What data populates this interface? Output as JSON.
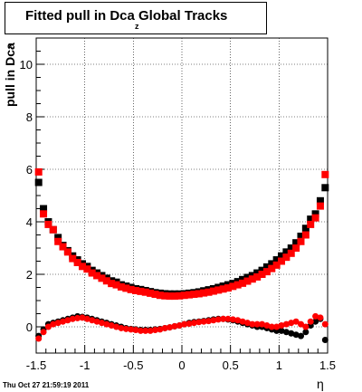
{
  "title": "Fitted pull in Dca",
  "title_suffix": "Global Tracks",
  "title_subscript": "z",
  "ylabel": "pull in Dca",
  "ylabel_subscript": "z",
  "xlabel": "η",
  "timestamp": "Thu Oct 27 21:59:19 2011",
  "chart_data": {
    "type": "scatter",
    "title": "Fitted pull in Dca Global Tracks",
    "xlabel": "η",
    "ylabel": "pull in Dca z",
    "xlim": [
      -1.5,
      1.5
    ],
    "ylim": [
      -1,
      11
    ],
    "xticks": [
      -1.5,
      -1,
      -0.5,
      0,
      0.5,
      1,
      1.5
    ],
    "xtick_labels": [
      "-1.5",
      "-1",
      "-0.5",
      "0",
      "0.5",
      "1",
      "1.5"
    ],
    "yticks": [
      0,
      2,
      4,
      6,
      8,
      10
    ],
    "ytick_labels": [
      "0",
      "2",
      "4",
      "6",
      "8",
      "10"
    ],
    "grid": true,
    "series": [
      {
        "color": "#000000",
        "marker": "square",
        "x": [
          -1.475,
          -1.425,
          -1.375,
          -1.325,
          -1.275,
          -1.225,
          -1.175,
          -1.125,
          -1.075,
          -1.025,
          -0.975,
          -0.925,
          -0.875,
          -0.825,
          -0.775,
          -0.725,
          -0.675,
          -0.625,
          -0.575,
          -0.525,
          -0.475,
          -0.425,
          -0.375,
          -0.325,
          -0.275,
          -0.225,
          -0.175,
          -0.125,
          -0.075,
          -0.025,
          0.025,
          0.075,
          0.125,
          0.175,
          0.225,
          0.275,
          0.325,
          0.375,
          0.425,
          0.475,
          0.525,
          0.575,
          0.625,
          0.675,
          0.725,
          0.775,
          0.825,
          0.875,
          0.925,
          0.975,
          1.025,
          1.075,
          1.125,
          1.175,
          1.225,
          1.275,
          1.325,
          1.375,
          1.425,
          1.475
        ],
        "values": [
          5.5,
          4.5,
          4.0,
          3.7,
          3.4,
          3.1,
          2.9,
          2.7,
          2.55,
          2.4,
          2.3,
          2.15,
          2.05,
          1.95,
          1.85,
          1.75,
          1.7,
          1.6,
          1.55,
          1.5,
          1.45,
          1.42,
          1.38,
          1.34,
          1.3,
          1.28,
          1.26,
          1.25,
          1.25,
          1.25,
          1.26,
          1.28,
          1.3,
          1.33,
          1.37,
          1.41,
          1.45,
          1.5,
          1.55,
          1.6,
          1.65,
          1.72,
          1.8,
          1.88,
          1.95,
          2.05,
          2.15,
          2.28,
          2.4,
          2.55,
          2.7,
          2.85,
          3.0,
          3.2,
          3.45,
          3.75,
          4.1,
          4.3,
          4.8,
          5.3
        ]
      },
      {
        "color": "#ff0000",
        "marker": "square",
        "x": [
          -1.475,
          -1.425,
          -1.375,
          -1.325,
          -1.275,
          -1.225,
          -1.175,
          -1.125,
          -1.075,
          -1.025,
          -0.975,
          -0.925,
          -0.875,
          -0.825,
          -0.775,
          -0.725,
          -0.675,
          -0.625,
          -0.575,
          -0.525,
          -0.475,
          -0.425,
          -0.375,
          -0.325,
          -0.275,
          -0.225,
          -0.175,
          -0.125,
          -0.075,
          -0.025,
          0.025,
          0.075,
          0.125,
          0.175,
          0.225,
          0.275,
          0.325,
          0.375,
          0.425,
          0.475,
          0.525,
          0.575,
          0.625,
          0.675,
          0.725,
          0.775,
          0.825,
          0.875,
          0.925,
          0.975,
          1.025,
          1.075,
          1.125,
          1.175,
          1.225,
          1.275,
          1.325,
          1.375,
          1.425,
          1.475
        ],
        "values": [
          5.9,
          4.3,
          3.9,
          3.7,
          3.25,
          3.05,
          2.85,
          2.6,
          2.45,
          2.3,
          2.2,
          2.05,
          1.95,
          1.85,
          1.75,
          1.65,
          1.6,
          1.52,
          1.47,
          1.42,
          1.38,
          1.35,
          1.32,
          1.28,
          1.24,
          1.2,
          1.18,
          1.17,
          1.17,
          1.18,
          1.2,
          1.22,
          1.24,
          1.26,
          1.29,
          1.32,
          1.36,
          1.4,
          1.44,
          1.48,
          1.54,
          1.6,
          1.66,
          1.74,
          1.82,
          1.9,
          2.0,
          2.1,
          2.22,
          2.35,
          2.5,
          2.65,
          2.8,
          3.0,
          3.25,
          3.5,
          3.9,
          4.15,
          4.6,
          5.8
        ]
      },
      {
        "color": "#000000",
        "marker": "circle",
        "x": [
          -1.475,
          -1.425,
          -1.375,
          -1.325,
          -1.275,
          -1.225,
          -1.175,
          -1.125,
          -1.075,
          -1.025,
          -0.975,
          -0.925,
          -0.875,
          -0.825,
          -0.775,
          -0.725,
          -0.675,
          -0.625,
          -0.575,
          -0.525,
          -0.475,
          -0.425,
          -0.375,
          -0.325,
          -0.275,
          -0.225,
          -0.175,
          -0.125,
          -0.075,
          -0.025,
          0.025,
          0.075,
          0.125,
          0.175,
          0.225,
          0.275,
          0.325,
          0.375,
          0.425,
          0.475,
          0.525,
          0.575,
          0.625,
          0.675,
          0.725,
          0.775,
          0.825,
          0.875,
          0.925,
          0.975,
          1.025,
          1.075,
          1.125,
          1.175,
          1.225,
          1.275,
          1.325,
          1.375,
          1.425,
          1.475
        ],
        "values": [
          -0.35,
          -0.1,
          0.1,
          0.15,
          0.2,
          0.25,
          0.3,
          0.35,
          0.4,
          0.38,
          0.35,
          0.3,
          0.25,
          0.2,
          0.15,
          0.1,
          0.05,
          0.0,
          -0.05,
          -0.08,
          -0.1,
          -0.12,
          -0.12,
          -0.12,
          -0.1,
          -0.08,
          -0.05,
          -0.02,
          0.02,
          0.05,
          0.1,
          0.15,
          0.18,
          0.2,
          0.22,
          0.25,
          0.28,
          0.3,
          0.3,
          0.28,
          0.25,
          0.2,
          0.15,
          0.1,
          0.05,
          0.0,
          0.0,
          -0.05,
          -0.1,
          -0.15,
          -0.15,
          -0.2,
          -0.25,
          -0.3,
          -0.35,
          -0.2,
          0.05,
          0.2,
          0.3,
          -0.5
        ]
      },
      {
        "color": "#ff0000",
        "marker": "circle",
        "x": [
          -1.475,
          -1.425,
          -1.375,
          -1.325,
          -1.275,
          -1.225,
          -1.175,
          -1.125,
          -1.075,
          -1.025,
          -0.975,
          -0.925,
          -0.875,
          -0.825,
          -0.775,
          -0.725,
          -0.675,
          -0.625,
          -0.575,
          -0.525,
          -0.475,
          -0.425,
          -0.375,
          -0.325,
          -0.275,
          -0.225,
          -0.175,
          -0.125,
          -0.075,
          -0.025,
          0.025,
          0.075,
          0.125,
          0.175,
          0.225,
          0.275,
          0.325,
          0.375,
          0.425,
          0.475,
          0.525,
          0.575,
          0.625,
          0.675,
          0.725,
          0.775,
          0.825,
          0.875,
          0.925,
          0.975,
          1.025,
          1.075,
          1.125,
          1.175,
          1.225,
          1.275,
          1.325,
          1.375,
          1.425,
          1.475
        ],
        "values": [
          -0.45,
          -0.2,
          0.0,
          0.1,
          0.15,
          0.2,
          0.25,
          0.3,
          0.33,
          0.35,
          0.3,
          0.25,
          0.2,
          0.15,
          0.1,
          0.05,
          0.0,
          -0.05,
          -0.08,
          -0.1,
          -0.12,
          -0.15,
          -0.15,
          -0.15,
          -0.12,
          -0.1,
          -0.05,
          -0.02,
          0.02,
          0.05,
          0.1,
          0.12,
          0.15,
          0.18,
          0.2,
          0.22,
          0.25,
          0.28,
          0.3,
          0.3,
          0.28,
          0.25,
          0.2,
          0.15,
          0.1,
          0.1,
          0.1,
          0.05,
          0.0,
          0.0,
          0.05,
          0.1,
          0.15,
          0.2,
          0.1,
          0.0,
          0.2,
          0.4,
          0.35,
          0.1
        ]
      }
    ]
  }
}
